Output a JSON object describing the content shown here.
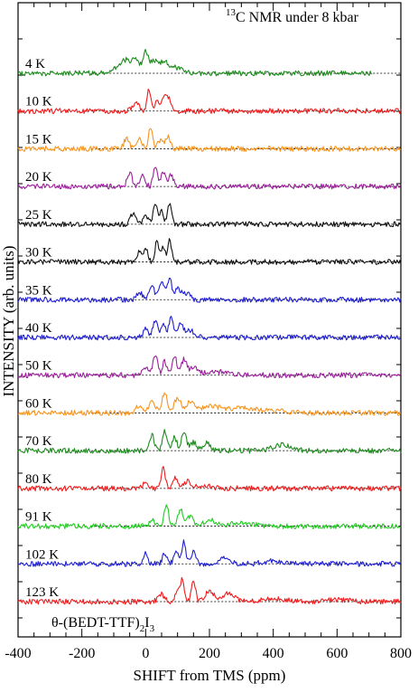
{
  "chart_data": {
    "type": "line",
    "title": "",
    "xlabel": "SHIFT from TMS (ppm)",
    "ylabel": "INTENSITY (arb. units)",
    "xlim": [
      -400,
      800
    ],
    "xticks": [
      "-400",
      "-200",
      "0",
      "200",
      "400",
      "600",
      "800"
    ],
    "annotations": {
      "top_right": {
        "sup": "13",
        "main": "C NMR under 8 kbar"
      },
      "compound": {
        "main": "θ-(BEDT-TTF)",
        "sub1": "2",
        "mid": "I",
        "sub2": "3"
      }
    },
    "series": [
      {
        "name": "4 K",
        "color": "#1e8b1e",
        "x_end": 710,
        "peaks": [
          [
            -90,
            0.25,
            22
          ],
          [
            -60,
            0.45,
            14
          ],
          [
            -30,
            0.55,
            12
          ],
          [
            0,
            0.9,
            8
          ],
          [
            25,
            0.5,
            10
          ],
          [
            55,
            0.45,
            14
          ],
          [
            90,
            0.25,
            20
          ]
        ]
      },
      {
        "name": "10 K",
        "color": "#ee1c1c",
        "x_end": 800,
        "peaks": [
          [
            -30,
            0.35,
            10
          ],
          [
            10,
            0.95,
            6
          ],
          [
            35,
            0.4,
            8
          ],
          [
            60,
            0.6,
            8
          ],
          [
            75,
            0.45,
            7
          ]
        ]
      },
      {
        "name": "15 K",
        "color": "#f7941d",
        "x_end": 800,
        "peaks": [
          [
            -60,
            0.45,
            8
          ],
          [
            -20,
            0.5,
            8
          ],
          [
            15,
            0.95,
            6
          ],
          [
            45,
            0.35,
            8
          ],
          [
            70,
            0.55,
            8
          ]
        ]
      },
      {
        "name": "20 K",
        "color": "#9b1f9b",
        "x_end": 800,
        "peaks": [
          [
            -50,
            0.55,
            8
          ],
          [
            -10,
            0.45,
            8
          ],
          [
            30,
            0.9,
            6
          ],
          [
            55,
            0.65,
            7
          ],
          [
            80,
            0.5,
            7
          ]
        ]
      },
      {
        "name": "25 K",
        "color": "#111111",
        "x_end": 800,
        "peaks": [
          [
            -40,
            0.45,
            8
          ],
          [
            0,
            0.4,
            8
          ],
          [
            30,
            0.95,
            6
          ],
          [
            50,
            0.6,
            6
          ],
          [
            75,
            0.85,
            6
          ]
        ]
      },
      {
        "name": "30 K",
        "color": "#111111",
        "x_end": 800,
        "peaks": [
          [
            -20,
            0.4,
            7
          ],
          [
            0,
            0.55,
            7
          ],
          [
            35,
            0.85,
            6
          ],
          [
            55,
            0.6,
            6
          ],
          [
            75,
            0.9,
            6
          ]
        ]
      },
      {
        "name": "35 K",
        "color": "#1f1fd0",
        "x_end": 800,
        "peaks": [
          [
            -20,
            0.35,
            8
          ],
          [
            20,
            0.55,
            8
          ],
          [
            50,
            0.75,
            8
          ],
          [
            75,
            0.9,
            7
          ],
          [
            100,
            0.45,
            8
          ],
          [
            125,
            0.3,
            12
          ]
        ]
      },
      {
        "name": "40 K",
        "color": "#1f1fd0",
        "x_end": 800,
        "peaks": [
          [
            0,
            0.35,
            8
          ],
          [
            30,
            0.75,
            7
          ],
          [
            55,
            0.55,
            7
          ],
          [
            80,
            0.9,
            7
          ],
          [
            110,
            0.55,
            8
          ],
          [
            140,
            0.3,
            14
          ]
        ]
      },
      {
        "name": "50 K",
        "color": "#9b1f9b",
        "x_end": 800,
        "peaks": [
          [
            0,
            0.35,
            8
          ],
          [
            30,
            0.9,
            7
          ],
          [
            60,
            0.6,
            7
          ],
          [
            90,
            0.85,
            7
          ],
          [
            120,
            0.65,
            8
          ],
          [
            150,
            0.3,
            14
          ],
          [
            220,
            0.15,
            35
          ]
        ]
      },
      {
        "name": "60 K",
        "color": "#f7941d",
        "x_end": 800,
        "peaks": [
          [
            -20,
            0.3,
            10
          ],
          [
            20,
            0.55,
            10
          ],
          [
            60,
            0.9,
            8
          ],
          [
            100,
            0.65,
            10
          ],
          [
            140,
            0.45,
            12
          ],
          [
            200,
            0.3,
            30
          ],
          [
            300,
            0.22,
            40
          ],
          [
            400,
            0.08,
            40
          ]
        ]
      },
      {
        "name": "70 K",
        "color": "#1e8b1e",
        "x_end": 800,
        "peaks": [
          [
            20,
            0.7,
            7
          ],
          [
            60,
            0.85,
            7
          ],
          [
            90,
            0.6,
            7
          ],
          [
            120,
            0.75,
            8
          ],
          [
            150,
            0.35,
            10
          ],
          [
            190,
            0.35,
            10
          ],
          [
            430,
            0.25,
            30
          ]
        ]
      },
      {
        "name": "80 K",
        "color": "#ee1c1c",
        "x_end": 800,
        "peaks": [
          [
            0,
            0.25,
            8
          ],
          [
            55,
            0.95,
            6
          ],
          [
            95,
            0.45,
            8
          ],
          [
            130,
            0.3,
            10
          ],
          [
            180,
            0.15,
            20
          ]
        ]
      },
      {
        "name": "91 K",
        "color": "#22cc22",
        "x_end": 800,
        "peaks": [
          [
            20,
            0.3,
            8
          ],
          [
            65,
            0.9,
            7
          ],
          [
            110,
            0.65,
            9
          ],
          [
            140,
            0.4,
            10
          ],
          [
            200,
            0.25,
            20
          ],
          [
            300,
            0.12,
            40
          ]
        ]
      },
      {
        "name": "102 K",
        "color": "#1f1fd0",
        "x_end": 800,
        "peaks": [
          [
            0,
            0.45,
            6
          ],
          [
            60,
            0.45,
            7
          ],
          [
            95,
            0.6,
            7
          ],
          [
            120,
            0.95,
            6
          ],
          [
            150,
            0.5,
            8
          ],
          [
            250,
            0.25,
            15
          ],
          [
            400,
            0.12,
            30
          ]
        ]
      },
      {
        "name": "123 K",
        "color": "#ee1c1c",
        "x_end": 800,
        "peaks": [
          [
            50,
            0.3,
            10
          ],
          [
            100,
            0.45,
            8
          ],
          [
            115,
            0.85,
            6
          ],
          [
            150,
            0.95,
            6
          ],
          [
            200,
            0.45,
            14
          ],
          [
            260,
            0.35,
            18
          ],
          [
            400,
            0.1,
            40
          ],
          [
            600,
            0.08,
            40
          ]
        ]
      }
    ]
  }
}
